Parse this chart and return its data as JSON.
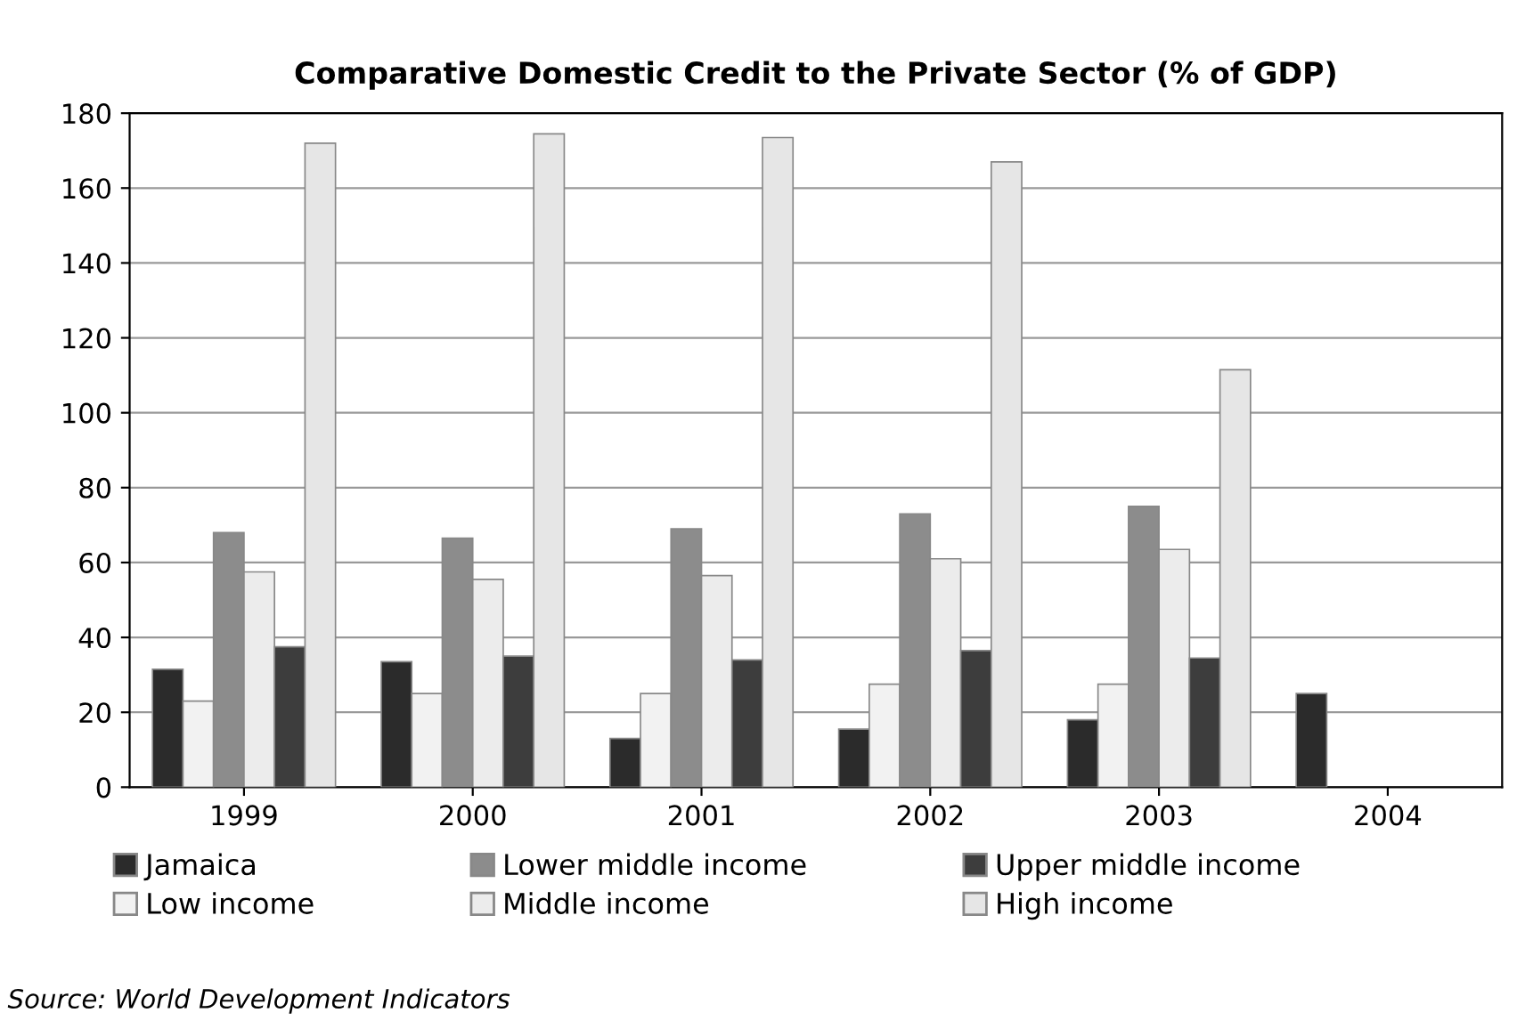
{
  "chart_data": {
    "type": "bar",
    "title": "Comparative Domestic Credit to the Private Sector (% of GDP)",
    "categories": [
      "1999",
      "2000",
      "2001",
      "2002",
      "2003",
      "2004"
    ],
    "series": [
      {
        "name": "Jamaica",
        "color": "#2b2b2b",
        "values": [
          31.5,
          33.5,
          13,
          15.5,
          18,
          25
        ]
      },
      {
        "name": "Low income",
        "color": "#f2f2f2",
        "values": [
          23,
          25,
          25,
          27.5,
          27.5,
          null
        ]
      },
      {
        "name": "Lower middle income",
        "color": "#8c8c8c",
        "values": [
          68,
          66.5,
          69,
          73,
          75,
          null
        ]
      },
      {
        "name": "Middle income",
        "color": "#ececec",
        "values": [
          57.5,
          55.5,
          56.5,
          61,
          63.5,
          null
        ]
      },
      {
        "name": "Upper middle income",
        "color": "#3d3d3d",
        "values": [
          37.5,
          35,
          34,
          36.5,
          34.5,
          null
        ]
      },
      {
        "name": "High income",
        "color": "#e6e6e6",
        "values": [
          172,
          174.5,
          173.5,
          167,
          111.5,
          null
        ]
      }
    ],
    "ylim": [
      0,
      180
    ],
    "yticks": [
      0,
      20,
      40,
      60,
      80,
      100,
      120,
      140,
      160,
      180
    ],
    "grid": "y",
    "legend": "bottom",
    "annotations": [
      "Source: World Development Indicators"
    ]
  }
}
